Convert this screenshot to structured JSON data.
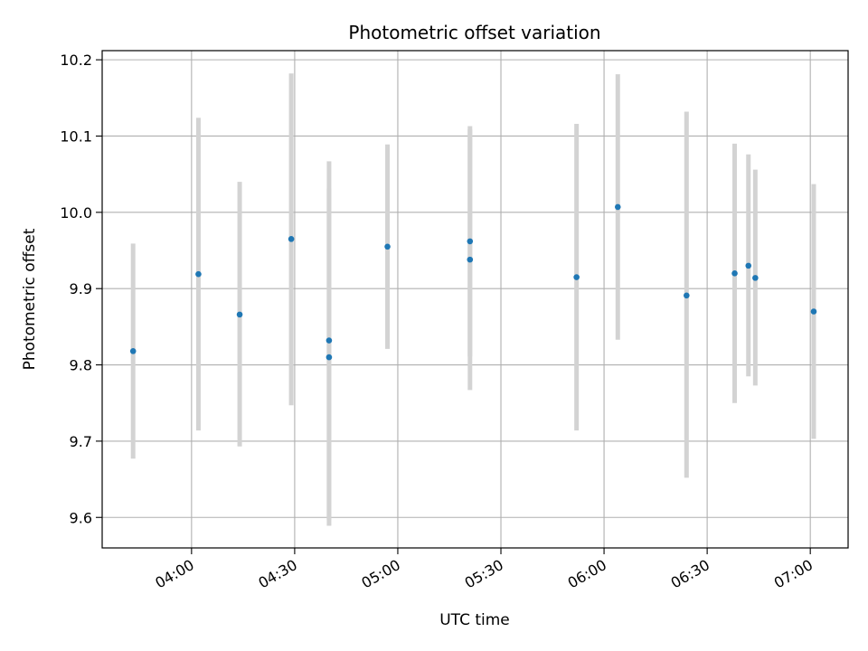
{
  "chart_data": {
    "type": "scatter",
    "title": "Photometric offset variation",
    "xlabel": "UTC time",
    "ylabel": "Photometric offset",
    "x_axis_kind": "time",
    "xlim": [
      "03:34",
      "07:11"
    ],
    "ylim": [
      9.56,
      10.212
    ],
    "grid": true,
    "x_ticks": [
      "04:00",
      "04:30",
      "05:00",
      "05:30",
      "06:00",
      "06:30",
      "07:00"
    ],
    "y_ticks": [
      9.6,
      9.7,
      9.8,
      9.9,
      10.0,
      10.1,
      10.2
    ],
    "y_tick_labels": [
      "9.6",
      "9.7",
      "9.8",
      "9.9",
      "10.0",
      "10.1",
      "10.2"
    ],
    "point_color": "#1f77b4",
    "errorbar_color": "#d3d3d3",
    "points": [
      {
        "x": "03:43",
        "y": 9.818,
        "ylow": 9.677,
        "yhigh": 9.959
      },
      {
        "x": "04:02",
        "y": 9.919,
        "ylow": 9.714,
        "yhigh": 10.124
      },
      {
        "x": "04:14",
        "y": 9.866,
        "ylow": 9.693,
        "yhigh": 10.04
      },
      {
        "x": "04:29",
        "y": 9.965,
        "ylow": 9.747,
        "yhigh": 10.182
      },
      {
        "x": "04:40",
        "y": 9.832,
        "ylow": 9.597,
        "yhigh": 10.067
      },
      {
        "x": "04:40",
        "y": 9.81,
        "ylow": 9.589,
        "yhigh": 10.031
      },
      {
        "x": "04:57",
        "y": 9.955,
        "ylow": 9.821,
        "yhigh": 10.089
      },
      {
        "x": "05:21",
        "y": 9.962,
        "ylow": 9.811,
        "yhigh": 10.113
      },
      {
        "x": "05:21",
        "y": 9.938,
        "ylow": 9.767,
        "yhigh": 10.109
      },
      {
        "x": "05:52",
        "y": 9.915,
        "ylow": 9.714,
        "yhigh": 10.116
      },
      {
        "x": "06:04",
        "y": 10.007,
        "ylow": 9.833,
        "yhigh": 10.181
      },
      {
        "x": "06:24",
        "y": 9.891,
        "ylow": 9.652,
        "yhigh": 10.132
      },
      {
        "x": "06:38",
        "y": 9.92,
        "ylow": 9.75,
        "yhigh": 10.09
      },
      {
        "x": "06:42",
        "y": 9.93,
        "ylow": 9.785,
        "yhigh": 10.076
      },
      {
        "x": "06:44",
        "y": 9.914,
        "ylow": 9.773,
        "yhigh": 10.056
      },
      {
        "x": "07:01",
        "y": 9.87,
        "ylow": 9.703,
        "yhigh": 10.037
      }
    ]
  }
}
